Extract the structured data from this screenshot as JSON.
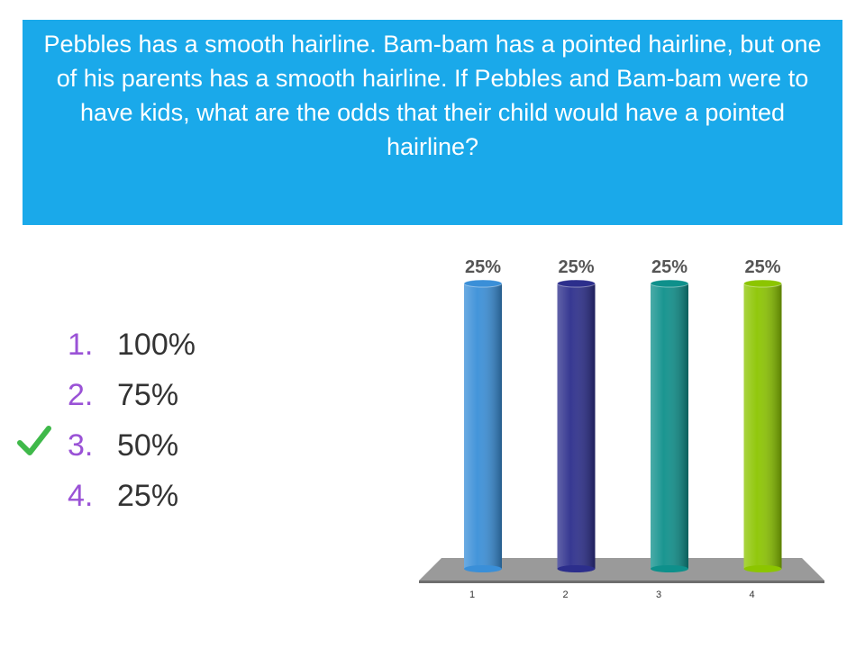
{
  "question": "Pebbles has a smooth hairline. Bam-bam has a pointed hairline, but one of his parents has a smooth hairline. If Pebbles and Bam-bam were to have kids, what are the odds that their child would have a pointed hairline?",
  "answers": [
    {
      "number": "1.",
      "text": "100%"
    },
    {
      "number": "2.",
      "text": "75%"
    },
    {
      "number": "3.",
      "text": "50%"
    },
    {
      "number": "4.",
      "text": "25%"
    }
  ],
  "chart_data": {
    "type": "bar",
    "categories": [
      "1",
      "2",
      "3",
      "4"
    ],
    "values": [
      25,
      25,
      25,
      25
    ],
    "value_labels": [
      "25%",
      "25%",
      "25%",
      "25%"
    ],
    "colors": [
      "#3a8fd8",
      "#2c2e8c",
      "#0e908b",
      "#8cc500"
    ]
  }
}
